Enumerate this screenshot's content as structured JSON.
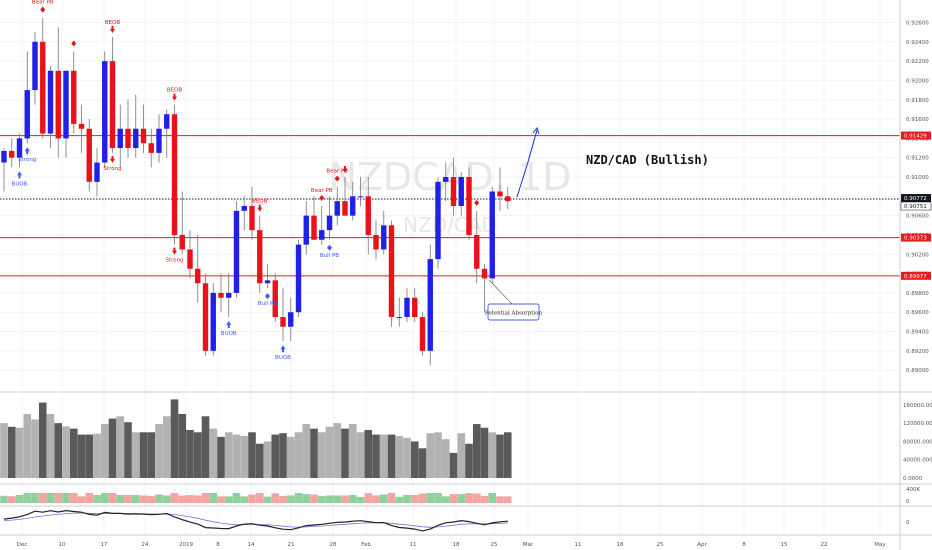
{
  "chart_data": {
    "type": "candlestick",
    "symbol_watermark": "NZDCAD, 1D",
    "symbol_watermark_small": "NZD/CAD",
    "title": "NZD/CAD (Bullish)",
    "price_axis_ticks": [
      "0.92600",
      "0.92400",
      "0.92200",
      "0.92000",
      "0.91800",
      "0.91600",
      "0.91400",
      "0.91200",
      "0.91000",
      "0.90800",
      "0.90600",
      "0.90400",
      "0.90200",
      "0.90000",
      "0.89800",
      "0.89600",
      "0.89400",
      "0.89200",
      "0.89000"
    ],
    "ylim": [
      0.8895,
      0.9275
    ],
    "volume_axis_ticks": [
      "160000.0000",
      "120000.0000",
      "80000.0000",
      "40000.0000",
      "0.0000"
    ],
    "volume_max": 175000,
    "osc_axis_ticks": [
      "400K",
      "0"
    ],
    "osc2_axis_ticks": [
      "0"
    ],
    "date_labels": [
      "Dec",
      "10",
      "17",
      "24",
      "2019",
      "8",
      "14",
      "21",
      "28",
      "Feb",
      "11",
      "18",
      "25",
      "Mar",
      "11",
      "18",
      "25",
      "Apr",
      "8",
      "15",
      "22",
      "May"
    ],
    "horizontal_lines": [
      {
        "price": 0.91429,
        "label": "0.91429",
        "color": "#e21b1b",
        "style": "solid"
      },
      {
        "price": 0.90373,
        "label": "0.90373",
        "color": "#e21b1b",
        "style": "solid"
      },
      {
        "price": 0.89977,
        "label": "0.89977",
        "color": "#e21b1b",
        "style": "solid"
      },
      {
        "price": 0.90772,
        "label": "0.90772",
        "color": "#131722",
        "style": "dotted"
      }
    ],
    "current_price_labels": [
      "0.90772",
      "0.90751"
    ],
    "annotation_box": "Potential Absorption",
    "candles": [
      {
        "o": 0.9115,
        "h": 0.913,
        "l": 0.9085,
        "c": 0.9127
      },
      {
        "o": 0.9127,
        "h": 0.914,
        "l": 0.911,
        "c": 0.912
      },
      {
        "o": 0.912,
        "h": 0.9145,
        "l": 0.911,
        "c": 0.914
      },
      {
        "o": 0.914,
        "h": 0.923,
        "l": 0.9135,
        "c": 0.919
      },
      {
        "o": 0.919,
        "h": 0.925,
        "l": 0.9175,
        "c": 0.924
      },
      {
        "o": 0.924,
        "h": 0.9265,
        "l": 0.914,
        "c": 0.9145
      },
      {
        "o": 0.9145,
        "h": 0.9215,
        "l": 0.913,
        "c": 0.921
      },
      {
        "o": 0.921,
        "h": 0.9255,
        "l": 0.912,
        "c": 0.914
      },
      {
        "o": 0.914,
        "h": 0.921,
        "l": 0.912,
        "c": 0.921
      },
      {
        "o": 0.921,
        "h": 0.923,
        "l": 0.9145,
        "c": 0.9155
      },
      {
        "o": 0.9155,
        "h": 0.9175,
        "l": 0.9125,
        "c": 0.915
      },
      {
        "o": 0.915,
        "h": 0.916,
        "l": 0.9085,
        "c": 0.9095
      },
      {
        "o": 0.9095,
        "h": 0.913,
        "l": 0.908,
        "c": 0.9115
      },
      {
        "o": 0.9115,
        "h": 0.923,
        "l": 0.911,
        "c": 0.922
      },
      {
        "o": 0.922,
        "h": 0.9245,
        "l": 0.9125,
        "c": 0.913
      },
      {
        "o": 0.913,
        "h": 0.9175,
        "l": 0.911,
        "c": 0.915
      },
      {
        "o": 0.915,
        "h": 0.918,
        "l": 0.912,
        "c": 0.913
      },
      {
        "o": 0.913,
        "h": 0.9185,
        "l": 0.912,
        "c": 0.915
      },
      {
        "o": 0.915,
        "h": 0.9175,
        "l": 0.9125,
        "c": 0.9135
      },
      {
        "o": 0.9135,
        "h": 0.915,
        "l": 0.911,
        "c": 0.9125
      },
      {
        "o": 0.9125,
        "h": 0.9165,
        "l": 0.9115,
        "c": 0.915
      },
      {
        "o": 0.915,
        "h": 0.917,
        "l": 0.912,
        "c": 0.9165
      },
      {
        "o": 0.9165,
        "h": 0.9175,
        "l": 0.903,
        "c": 0.904
      },
      {
        "o": 0.904,
        "h": 0.9085,
        "l": 0.902,
        "c": 0.9025
      },
      {
        "o": 0.9025,
        "h": 0.9045,
        "l": 0.8995,
        "c": 0.9005
      },
      {
        "o": 0.9005,
        "h": 0.904,
        "l": 0.897,
        "c": 0.899
      },
      {
        "o": 0.899,
        "h": 0.9,
        "l": 0.8915,
        "c": 0.892
      },
      {
        "o": 0.892,
        "h": 0.899,
        "l": 0.8915,
        "c": 0.898
      },
      {
        "o": 0.898,
        "h": 0.9,
        "l": 0.896,
        "c": 0.8975
      },
      {
        "o": 0.8975,
        "h": 0.9,
        "l": 0.8955,
        "c": 0.898
      },
      {
        "o": 0.898,
        "h": 0.9075,
        "l": 0.8975,
        "c": 0.9065
      },
      {
        "o": 0.9065,
        "h": 0.908,
        "l": 0.9045,
        "c": 0.907
      },
      {
        "o": 0.907,
        "h": 0.909,
        "l": 0.9035,
        "c": 0.9045
      },
      {
        "o": 0.9045,
        "h": 0.906,
        "l": 0.898,
        "c": 0.899
      },
      {
        "o": 0.899,
        "h": 0.901,
        "l": 0.8985,
        "c": 0.8993
      },
      {
        "o": 0.8993,
        "h": 0.9,
        "l": 0.895,
        "c": 0.8955
      },
      {
        "o": 0.8955,
        "h": 0.8985,
        "l": 0.893,
        "c": 0.8945
      },
      {
        "o": 0.8945,
        "h": 0.8975,
        "l": 0.893,
        "c": 0.896
      },
      {
        "o": 0.896,
        "h": 0.9035,
        "l": 0.8955,
        "c": 0.903
      },
      {
        "o": 0.903,
        "h": 0.9075,
        "l": 0.902,
        "c": 0.906
      },
      {
        "o": 0.906,
        "h": 0.908,
        "l": 0.9035,
        "c": 0.9035
      },
      {
        "o": 0.9035,
        "h": 0.907,
        "l": 0.903,
        "c": 0.9045
      },
      {
        "o": 0.9045,
        "h": 0.908,
        "l": 0.9035,
        "c": 0.906
      },
      {
        "o": 0.906,
        "h": 0.909,
        "l": 0.905,
        "c": 0.9075
      },
      {
        "o": 0.9075,
        "h": 0.91,
        "l": 0.906,
        "c": 0.906
      },
      {
        "o": 0.906,
        "h": 0.9095,
        "l": 0.9055,
        "c": 0.908
      },
      {
        "o": 0.908,
        "h": 0.91,
        "l": 0.907,
        "c": 0.908
      },
      {
        "o": 0.908,
        "h": 0.91,
        "l": 0.902,
        "c": 0.904
      },
      {
        "o": 0.904,
        "h": 0.9055,
        "l": 0.9015,
        "c": 0.9025
      },
      {
        "o": 0.9025,
        "h": 0.9065,
        "l": 0.902,
        "c": 0.905
      },
      {
        "o": 0.905,
        "h": 0.9055,
        "l": 0.8945,
        "c": 0.8955
      },
      {
        "o": 0.8955,
        "h": 0.8975,
        "l": 0.8945,
        "c": 0.8955
      },
      {
        "o": 0.8955,
        "h": 0.8985,
        "l": 0.895,
        "c": 0.8975
      },
      {
        "o": 0.8975,
        "h": 0.8985,
        "l": 0.895,
        "c": 0.8955
      },
      {
        "o": 0.8955,
        "h": 0.896,
        "l": 0.8915,
        "c": 0.892
      },
      {
        "o": 0.892,
        "h": 0.903,
        "l": 0.8905,
        "c": 0.9015
      },
      {
        "o": 0.9015,
        "h": 0.91,
        "l": 0.9005,
        "c": 0.9095
      },
      {
        "o": 0.9095,
        "h": 0.9115,
        "l": 0.9075,
        "c": 0.91
      },
      {
        "o": 0.91,
        "h": 0.912,
        "l": 0.906,
        "c": 0.907
      },
      {
        "o": 0.907,
        "h": 0.9105,
        "l": 0.906,
        "c": 0.91
      },
      {
        "o": 0.91,
        "h": 0.911,
        "l": 0.9035,
        "c": 0.904
      },
      {
        "o": 0.904,
        "h": 0.9065,
        "l": 0.899,
        "c": 0.9005
      },
      {
        "o": 0.9005,
        "h": 0.901,
        "l": 0.896,
        "c": 0.8995
      },
      {
        "o": 0.8995,
        "h": 0.909,
        "l": 0.899,
        "c": 0.9085
      },
      {
        "o": 0.9085,
        "h": 0.911,
        "l": 0.9065,
        "c": 0.908
      },
      {
        "o": 0.908,
        "h": 0.909,
        "l": 0.9067,
        "c": 0.9075
      }
    ],
    "volumes": [
      120000,
      112000,
      110000,
      140000,
      128000,
      165000,
      140000,
      120000,
      113000,
      108000,
      95000,
      95000,
      97000,
      118000,
      130000,
      135000,
      122000,
      100000,
      100000,
      100000,
      118000,
      135000,
      172000,
      140000,
      105000,
      100000,
      135000,
      108000,
      90000,
      100000,
      95000,
      92000,
      100000,
      75000,
      80000,
      95000,
      98000,
      90000,
      100000,
      118000,
      108000,
      100000,
      112000,
      120000,
      108000,
      118000,
      100000,
      105000,
      95000,
      95000,
      95000,
      92000,
      88000,
      80000,
      65000,
      98000,
      100000,
      85000,
      55000,
      98000,
      75000,
      118000,
      110000,
      100000,
      95000,
      100000
    ],
    "up_color": "#2020e8",
    "down_color": "#e8121a",
    "markers": [
      {
        "i": 3,
        "type": "up-arrow",
        "color": "#3d5afe",
        "label": "Strong"
      },
      {
        "i": 2,
        "type": "up-arrow",
        "color": "#3d5afe",
        "label": "BUOB"
      },
      {
        "i": 5,
        "type": "diamond-above",
        "color": "#e8121a",
        "label": "Bear PB"
      },
      {
        "i": 9,
        "type": "diamond-above",
        "color": "#e8121a",
        "label": ""
      },
      {
        "i": 14,
        "type": "down-arrow-above",
        "color": "#e8121a",
        "label": "BEOB"
      },
      {
        "i": 14,
        "type": "down-arrow-below",
        "color": "#e8121a",
        "label": "Strong"
      },
      {
        "i": 22,
        "type": "down-arrow-above",
        "color": "#e8121a",
        "label": "BEOB"
      },
      {
        "i": 22,
        "type": "down-arrow-below",
        "color": "#e8121a",
        "label": "Strong"
      },
      {
        "i": 29,
        "type": "up-arrow",
        "color": "#3d5afe",
        "label": "BUOB"
      },
      {
        "i": 33,
        "type": "down-arrow-above",
        "color": "#e8121a",
        "label": "BEOB"
      },
      {
        "i": 34,
        "type": "diamond-below",
        "color": "#3d5afe",
        "label": "Bull PB"
      },
      {
        "i": 36,
        "type": "up-arrow",
        "color": "#3d5afe",
        "label": "BUOB"
      },
      {
        "i": 41,
        "type": "diamond-above",
        "color": "#e8121a",
        "label": "Bear PB"
      },
      {
        "i": 42,
        "type": "diamond-below",
        "color": "#3d5afe",
        "label": "Bull PB"
      },
      {
        "i": 43,
        "type": "diamond-above",
        "color": "#e8121a",
        "label": "Bear PB"
      },
      {
        "i": 44,
        "type": "down-arrow-above",
        "color": "#e8121a",
        "label": ""
      },
      {
        "i": 61,
        "type": "diamond-above",
        "color": "#e8121a",
        "label": ""
      }
    ]
  }
}
